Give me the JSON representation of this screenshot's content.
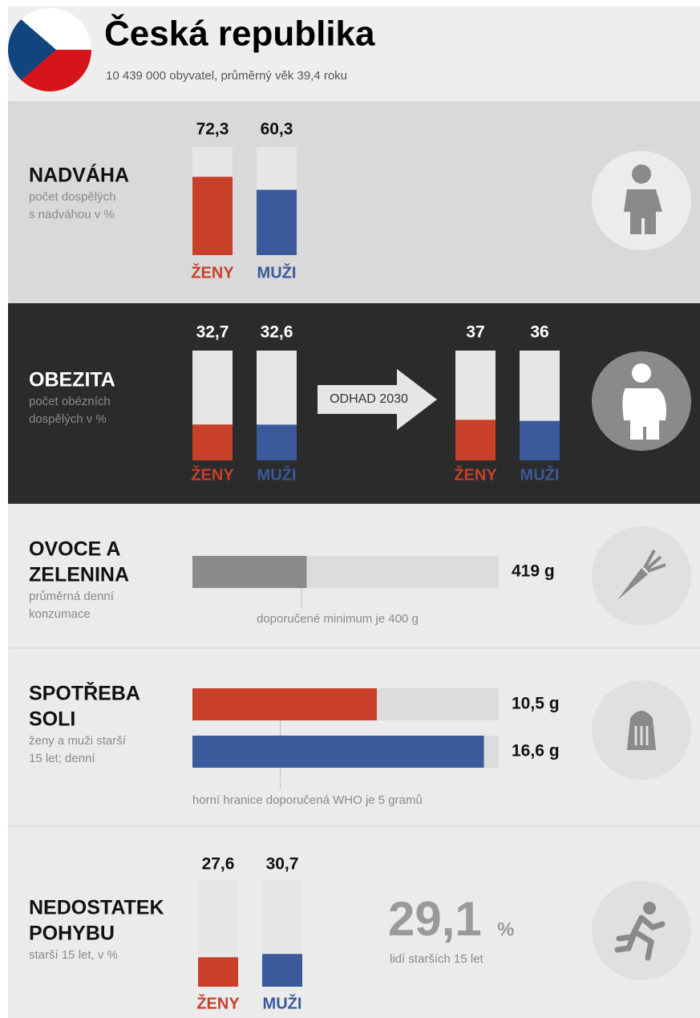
{
  "header": {
    "title": "Česká republika",
    "subtitle": "10 439 000 obyvatel, průměrný věk 39,4 roku"
  },
  "overweight": {
    "title": "NADVÁHA",
    "desc": [
      "počet dospělých",
      "s nadváhou v %"
    ],
    "bars": [
      {
        "name": "ŽENY",
        "value": 72.3,
        "label": "72,3",
        "color": "#c8402a"
      },
      {
        "name": "MUŽI",
        "value": 60.3,
        "label": "60,3",
        "color": "#3a5a9c"
      }
    ]
  },
  "obesity": {
    "title": "OBEZITA",
    "desc": [
      "počet obézních",
      "dospělých v %"
    ],
    "bars": [
      {
        "name": "ŽENY",
        "value": 32.7,
        "label": "32,7",
        "color": "#c8402a"
      },
      {
        "name": "MUŽI",
        "value": 32.6,
        "label": "32,6",
        "color": "#3a5a9c"
      }
    ],
    "arrow": "ODHAD 2030",
    "forecast": [
      {
        "name": "ŽENY",
        "value": 37,
        "color": "#c8402a"
      },
      {
        "name": "MUŽI",
        "value": 36,
        "color": "#3a5a9c"
      }
    ]
  },
  "fruit": {
    "title": [
      "OVOCE A",
      "ZELENINA"
    ],
    "desc": [
      "průměrná denní",
      "konzumace"
    ],
    "value": 419,
    "label": "419 g",
    "color": "#8a8a8a",
    "minimum": 400,
    "note": "doporučené minimum je 400 g"
  },
  "salt": {
    "title": [
      "SPOTŘEBA",
      "SOLI"
    ],
    "desc": [
      "ženy a muži starší",
      "15 let; denní"
    ],
    "bars": [
      {
        "value": 10.5,
        "label": "10,5 g",
        "color": "#c8402a"
      },
      {
        "value": 16.6,
        "label": "16,6 g",
        "color": "#3a5a9c"
      }
    ],
    "limit": 5,
    "note": "horní hranice doporučená WHO je 5 gramů"
  },
  "activity": {
    "title": [
      "NEDOSTATEK",
      "POHYBU"
    ],
    "desc": [
      "starší 15 let, v %"
    ],
    "bars": [
      {
        "name": "ŽENY",
        "value": 27.6,
        "label": "27,6",
        "color": "#c8402a"
      },
      {
        "name": "MUŽI",
        "value": 30.7,
        "label": "30,7",
        "color": "#3a5a9c"
      }
    ],
    "total": {
      "value": 29.1,
      "label": "29,1",
      "unit": "%",
      "note": "lidí starších 15 let"
    }
  }
}
